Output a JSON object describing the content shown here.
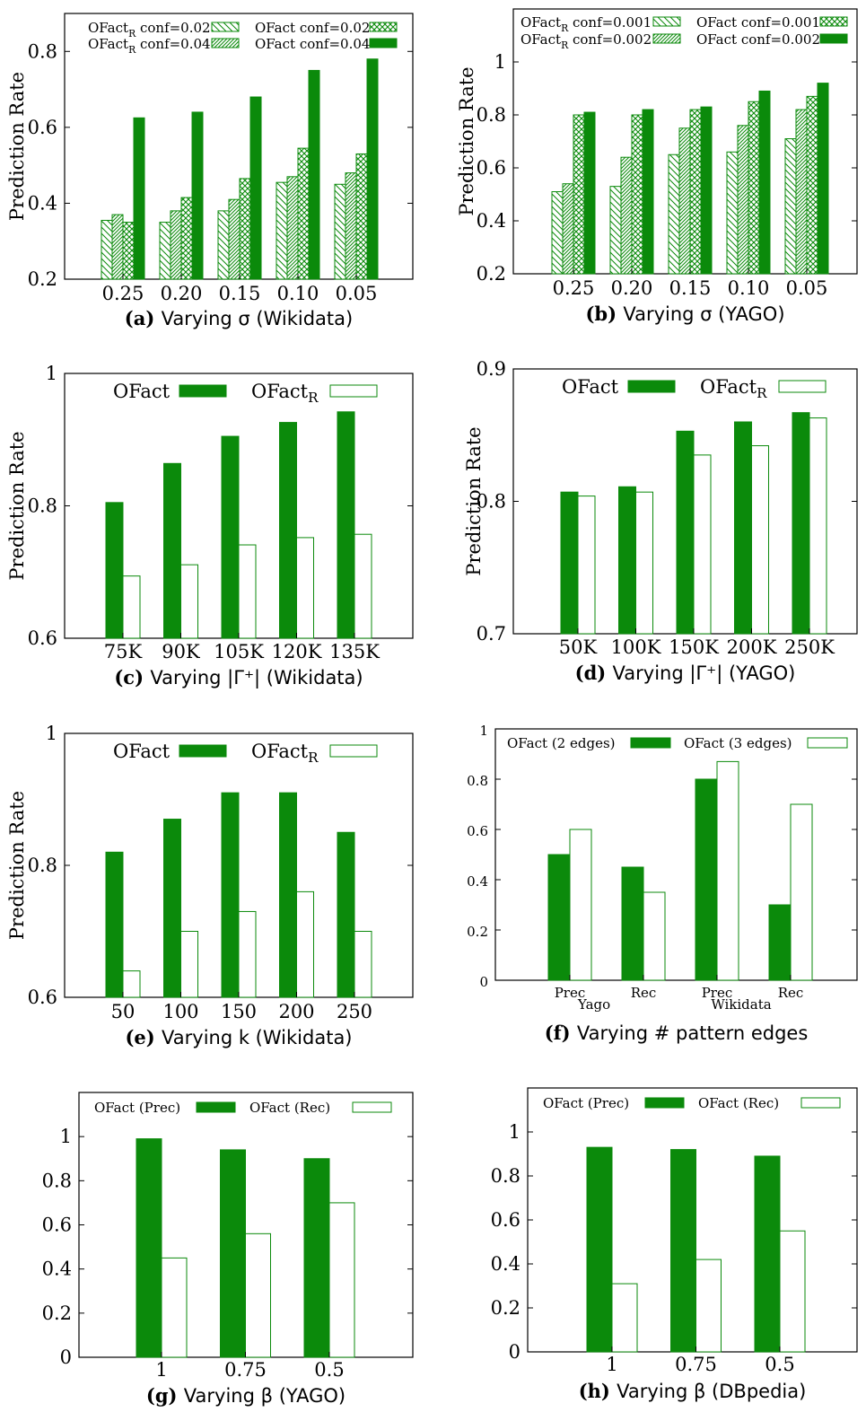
{
  "chart_data": [
    {
      "type": "bar",
      "panel": "(a)",
      "caption": {
        "letter": "(a)",
        "text": "Varying σ (Wikidata)"
      },
      "ylabel": "Prediction Rate",
      "ylim": [
        0.2,
        0.9
      ],
      "yticks": [
        "0.2",
        "0.4",
        "0.6",
        "0.8"
      ],
      "categories": [
        "0.25",
        "0.20",
        "0.15",
        "0.10",
        "0.05"
      ],
      "series": [
        {
          "name": "OFactR conf=0.02",
          "style": "hatch-back",
          "values": [
            0.355,
            0.35,
            0.38,
            0.455,
            0.45
          ]
        },
        {
          "name": "OFactR conf=0.04",
          "style": "hatch-fwd",
          "values": [
            0.37,
            0.38,
            0.41,
            0.47,
            0.48
          ]
        },
        {
          "name": "OFact conf=0.02",
          "style": "crosshatch",
          "values": [
            0.35,
            0.415,
            0.465,
            0.545,
            0.53
          ]
        },
        {
          "name": "OFact conf=0.04",
          "style": "solid",
          "values": [
            0.625,
            0.64,
            0.68,
            0.75,
            0.78
          ]
        }
      ],
      "legend": "top"
    },
    {
      "type": "bar",
      "panel": "(b)",
      "caption": {
        "letter": "(b)",
        "text": "Varying σ (YAGO)"
      },
      "ylabel": "Prediction Rate",
      "ylim": [
        0.2,
        1.2
      ],
      "yticks": [
        "0.2",
        "0.4",
        "0.6",
        "0.8",
        "1"
      ],
      "categories": [
        "0.25",
        "0.20",
        "0.15",
        "0.10",
        "0.05"
      ],
      "series": [
        {
          "name": "OFactR conf=0.001",
          "style": "hatch-back",
          "values": [
            0.51,
            0.53,
            0.65,
            0.66,
            0.71
          ]
        },
        {
          "name": "OFactR conf=0.002",
          "style": "hatch-fwd",
          "values": [
            0.54,
            0.64,
            0.75,
            0.76,
            0.82
          ]
        },
        {
          "name": "OFact conf=0.001",
          "style": "crosshatch",
          "values": [
            0.8,
            0.8,
            0.82,
            0.85,
            0.87
          ]
        },
        {
          "name": "OFact conf=0.002",
          "style": "solid",
          "values": [
            0.81,
            0.82,
            0.83,
            0.89,
            0.92
          ]
        }
      ],
      "legend": "top"
    },
    {
      "type": "bar",
      "panel": "(c)",
      "caption": {
        "letter": "(c)",
        "text": "Varying |Γ⁺| (Wikidata)"
      },
      "ylabel": "Prediction Rate",
      "ylim": [
        0.6,
        1.0
      ],
      "yticks": [
        "0.6",
        "0.8",
        "1"
      ],
      "categories": [
        "75K",
        "90K",
        "105K",
        "120K",
        "135K"
      ],
      "series": [
        {
          "name": "OFact",
          "style": "solid",
          "values": [
            0.805,
            0.864,
            0.905,
            0.926,
            0.942
          ]
        },
        {
          "name": "OFactR",
          "style": "outline",
          "values": [
            0.694,
            0.711,
            0.741,
            0.752,
            0.757
          ]
        }
      ],
      "legend": "top"
    },
    {
      "type": "bar",
      "panel": "(d)",
      "caption": {
        "letter": "(d)",
        "text": "Varying |Γ⁺| (YAGO)"
      },
      "ylabel": "Prediction Rate",
      "ylim": [
        0.7,
        0.9
      ],
      "yticks": [
        "0.7",
        "0.8",
        "0.9"
      ],
      "categories": [
        "50K",
        "100K",
        "150K",
        "200K",
        "250K"
      ],
      "series": [
        {
          "name": "OFact",
          "style": "solid",
          "values": [
            0.807,
            0.811,
            0.853,
            0.86,
            0.867
          ]
        },
        {
          "name": "OFactR",
          "style": "outline",
          "values": [
            0.804,
            0.807,
            0.835,
            0.842,
            0.863
          ]
        }
      ],
      "legend": "top"
    },
    {
      "type": "bar",
      "panel": "(e)",
      "caption": {
        "letter": "(e)",
        "text": "Varying k (Wikidata)"
      },
      "ylabel": "Prediction Rate",
      "ylim": [
        0.6,
        1.0
      ],
      "yticks": [
        "0.6",
        "0.8",
        "1"
      ],
      "categories": [
        "50",
        "100",
        "150",
        "200",
        "250"
      ],
      "series": [
        {
          "name": "OFact",
          "style": "solid",
          "values": [
            0.82,
            0.87,
            0.91,
            0.91,
            0.85
          ]
        },
        {
          "name": "OFactR",
          "style": "outline",
          "values": [
            0.64,
            0.7,
            0.73,
            0.76,
            0.7
          ]
        }
      ],
      "legend": "top"
    },
    {
      "type": "bar",
      "panel": "(f)",
      "caption": {
        "letter": "(f)",
        "text": "Varying # pattern edges"
      },
      "ylabel": "",
      "ylim": [
        0,
        1
      ],
      "yticks": [
        "0",
        "0.2",
        "0.4",
        "0.6",
        "0.8",
        "1"
      ],
      "categories": [
        "Prec",
        "Rec",
        "Prec",
        "Rec"
      ],
      "groups": [
        "Yago",
        "Wikidata"
      ],
      "series": [
        {
          "name": "OFact (2 edges)",
          "style": "solid",
          "values": [
            0.5,
            0.45,
            0.8,
            0.3
          ]
        },
        {
          "name": "OFact (3 edges)",
          "style": "outline",
          "values": [
            0.6,
            0.35,
            0.87,
            0.7
          ]
        }
      ],
      "legend": "top"
    },
    {
      "type": "bar",
      "panel": "(g)",
      "caption": {
        "letter": "(g)",
        "text": "Varying β (YAGO)"
      },
      "ylabel": "",
      "ylim": [
        0,
        1.2
      ],
      "yticks": [
        "0",
        "0.2",
        "0.4",
        "0.6",
        "0.8",
        "1"
      ],
      "categories": [
        "1",
        "0.75",
        "0.5"
      ],
      "series": [
        {
          "name": "OFact (Prec)",
          "style": "solid",
          "values": [
            0.99,
            0.94,
            0.9
          ]
        },
        {
          "name": "OFact (Rec)",
          "style": "outline",
          "values": [
            0.45,
            0.56,
            0.7
          ]
        }
      ],
      "legend": "top"
    },
    {
      "type": "bar",
      "panel": "(h)",
      "caption": {
        "letter": "(h)",
        "text": "Varying β (DBpedia)"
      },
      "ylabel": "",
      "ylim": [
        0,
        1.2
      ],
      "yticks": [
        "0",
        "0.2",
        "0.4",
        "0.6",
        "0.8",
        "1"
      ],
      "categories": [
        "1",
        "0.75",
        "0.5"
      ],
      "series": [
        {
          "name": "OFact (Prec)",
          "style": "solid",
          "values": [
            0.93,
            0.92,
            0.89
          ]
        },
        {
          "name": "OFact (Rec)",
          "style": "outline",
          "values": [
            0.31,
            0.42,
            0.55
          ]
        }
      ],
      "legend": "top"
    }
  ],
  "colors": {
    "bar_green": "#0b8a0b",
    "axis": "#000000"
  }
}
